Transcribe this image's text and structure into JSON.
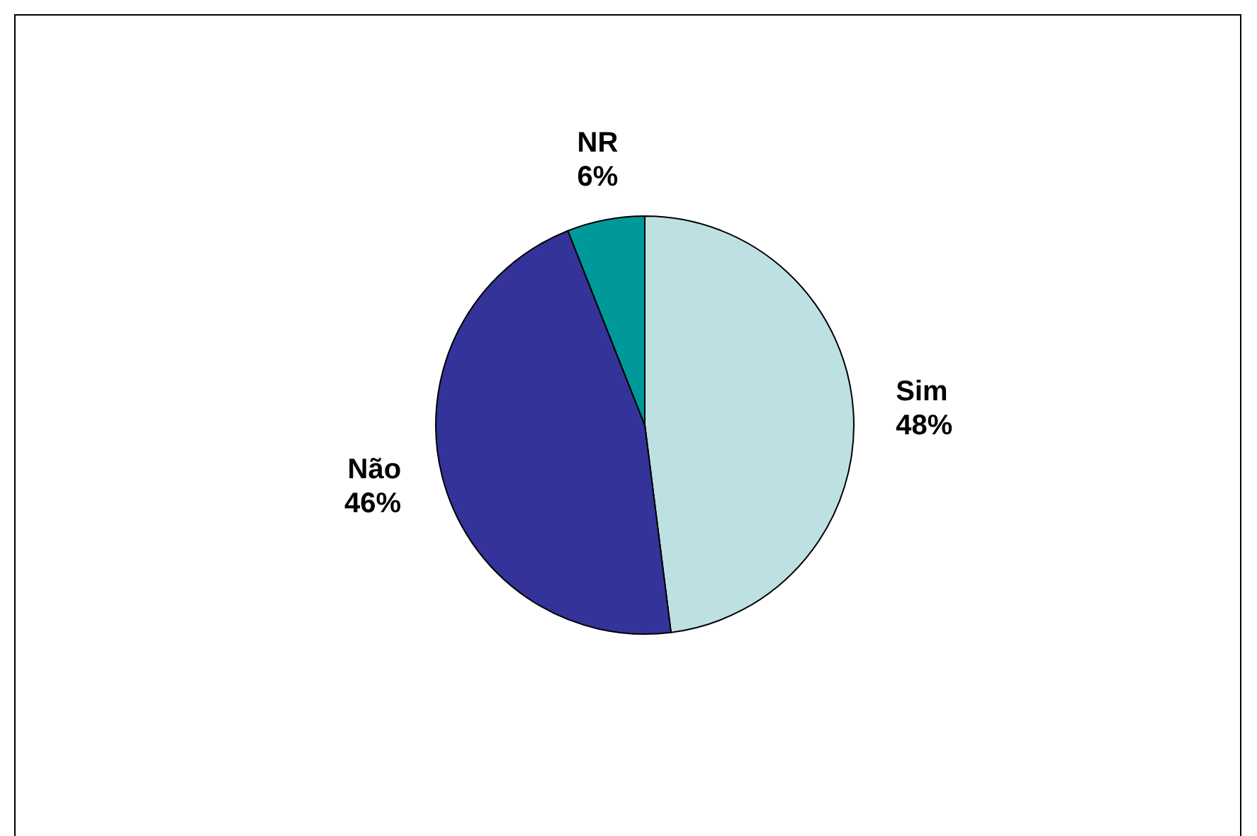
{
  "chart_data": {
    "type": "pie",
    "categories": [
      "Sim",
      "Não",
      "NR"
    ],
    "values": [
      48,
      46,
      6
    ],
    "colors": [
      "#bde0e3",
      "#333399",
      "#009999"
    ],
    "value_labels": [
      "48%",
      "46%",
      "6%"
    ],
    "legend": false
  }
}
